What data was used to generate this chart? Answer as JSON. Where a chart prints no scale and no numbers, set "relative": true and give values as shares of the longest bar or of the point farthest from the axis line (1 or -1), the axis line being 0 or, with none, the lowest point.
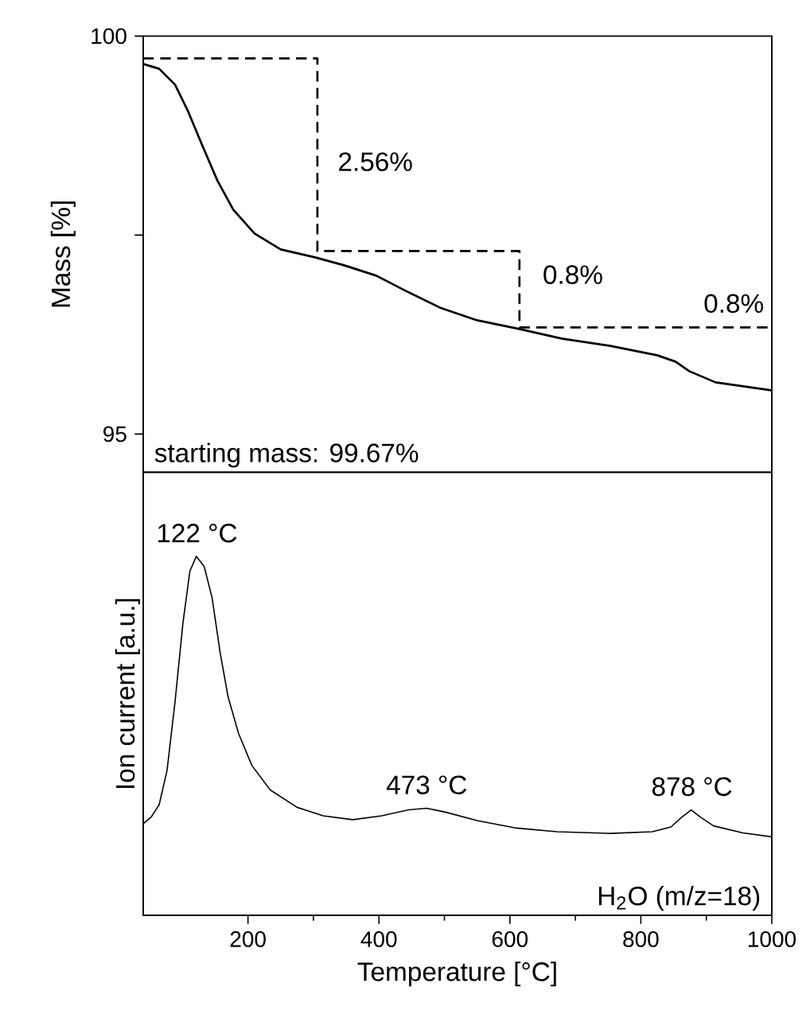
{
  "chart_data": [
    {
      "type": "line",
      "ylabel": "Mass [%]",
      "xlim": [
        40,
        1000
      ],
      "ylim": [
        94.52,
        100
      ],
      "yticks": [
        95,
        {
          "value": 97.5,
          "label": null
        },
        100
      ],
      "tick_labels": "y",
      "series": [
        {
          "color": "#000000",
          "x": [
            40,
            64.3,
            88.6,
            108.8,
            129,
            153,
            177.5,
            210,
            250,
            302.6,
            347,
            396,
            436,
            493,
            550,
            614.6,
            679,
            752,
            825,
            853,
            874,
            914,
            999
          ],
          "values": [
            99.65,
            99.59,
            99.39,
            99.05,
            98.65,
            98.19,
            97.82,
            97.52,
            97.32,
            97.22,
            97.12,
            96.99,
            96.82,
            96.59,
            96.43,
            96.32,
            96.2,
            96.11,
            95.99,
            95.91,
            95.79,
            95.65,
            95.55
          ]
        },
        {
          "type": "line",
          "color": "#000000",
          "line_style": "dashed",
          "x": [
            40,
            306,
            306,
            614.6,
            614.6,
            1000
          ],
          "values": [
            99.72,
            99.72,
            97.3,
            97.3,
            96.34,
            96.34
          ]
        }
      ],
      "annotations": [
        "2.56%",
        "0.8%",
        "0.8%",
        "starting mass: 99.67%"
      ]
    },
    {
      "type": "line",
      "relative": true,
      "xlabel": "Temperature [°C]",
      "ylabel": "Ion current [a.u.]",
      "xlim": [
        40,
        1000
      ],
      "xticks": [
        200,
        400,
        600,
        800,
        1000
      ],
      "tick_labels": "x",
      "series": [
        {
          "color": "#000000",
          "x": [
            40,
            52,
            64.3,
            76.4,
            88.6,
            100.7,
            111.2,
            121,
            133,
            145.3,
            157.4,
            169.5,
            185.7,
            206,
            234,
            275,
            315,
            360,
            404,
            445,
            473,
            501.6,
            550,
            607,
            672,
            753,
            817.6,
            846,
            862.6,
            877,
            891,
            911,
            956,
            1000
          ],
          "values": [
            0.047,
            0.07,
            0.114,
            0.237,
            0.482,
            0.763,
            0.947,
            1.0,
            0.965,
            0.851,
            0.658,
            0.5,
            0.368,
            0.254,
            0.167,
            0.105,
            0.075,
            0.061,
            0.075,
            0.096,
            0.102,
            0.088,
            0.058,
            0.032,
            0.018,
            0.012,
            0.018,
            0.035,
            0.07,
            0.096,
            0.07,
            0.039,
            0.014,
            0
          ]
        }
      ],
      "annotations": [
        {
          "text": "122 °C",
          "x": 122,
          "y": 1.0
        },
        {
          "text": "473 °C",
          "x": 473,
          "y": 0.102
        },
        {
          "text": "878 °C",
          "x": 878,
          "y": 0.096
        },
        "H$_{2}$O (m/z=18)"
      ]
    }
  ]
}
